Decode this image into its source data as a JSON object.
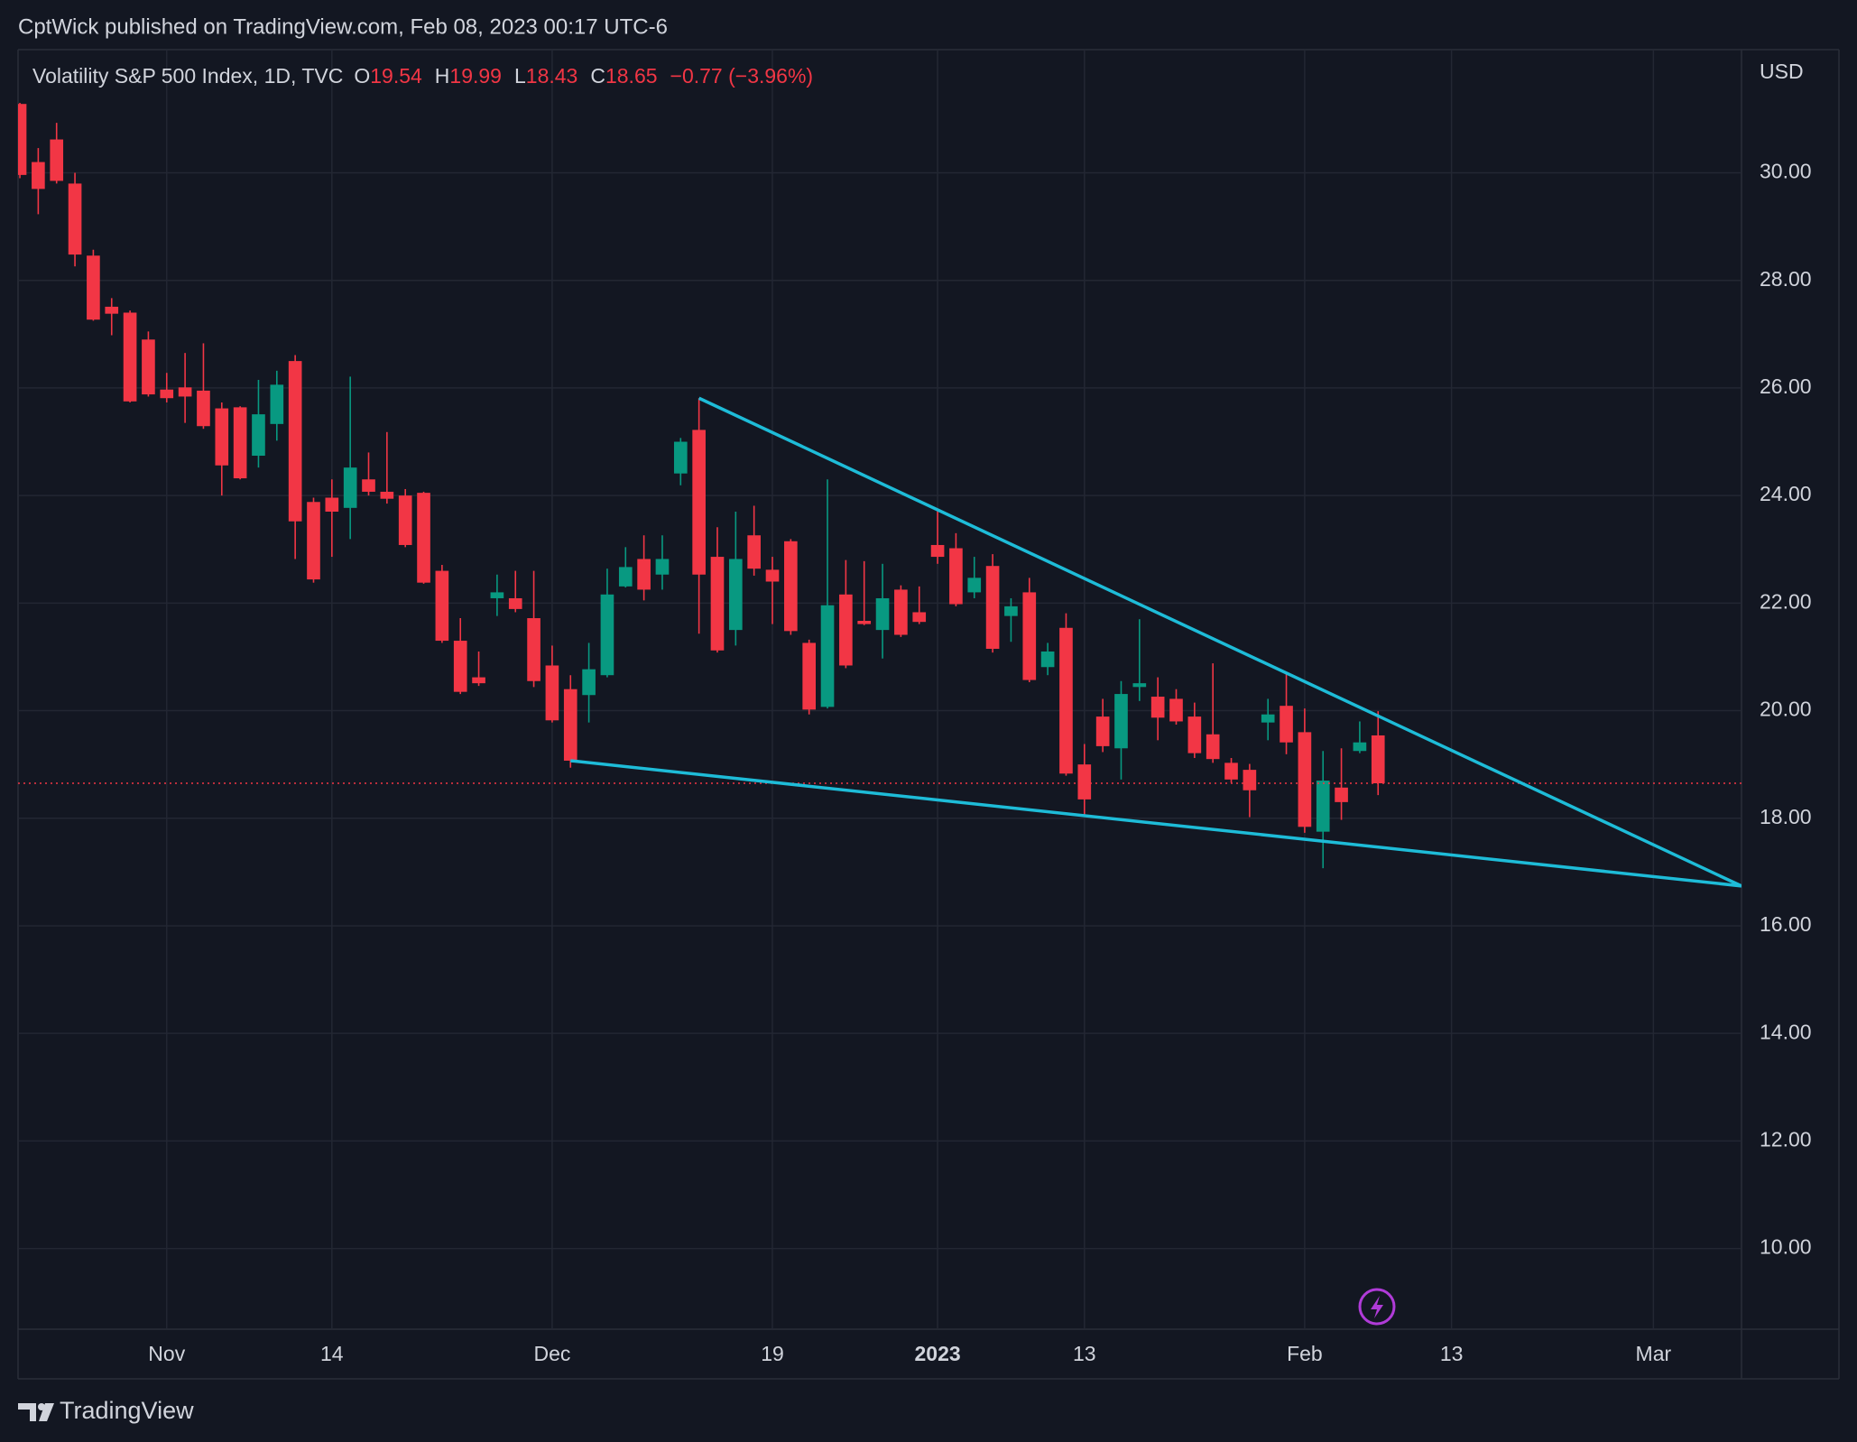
{
  "header": {
    "publisher": "CptWick published on TradingView.com, Feb 08, 2023 00:17 UTC-6"
  },
  "footer": {
    "brand": "TradingView"
  },
  "chart_data": {
    "type": "candlestick",
    "legend": {
      "name": "Volatility S&P 500 Index, 1D, TVC",
      "ohlc_labels": [
        "O",
        "H",
        "L",
        "C"
      ],
      "open": 19.54,
      "high": 19.99,
      "low": 18.43,
      "close": 18.65,
      "change": "−0.77 (−3.96%)"
    },
    "currency": "USD",
    "up_color": "#089981",
    "down_color": "#f23645",
    "trendline_color": "#1ebcd8",
    "grid": true,
    "xlim": [
      -0.1,
      93.8
    ],
    "xticks": [
      {
        "value": 8,
        "label": "Nov"
      },
      {
        "value": 17,
        "label": "14"
      },
      {
        "value": 29,
        "label": "Dec"
      },
      {
        "value": 41,
        "label": "19"
      },
      {
        "value": 50,
        "label": "2023"
      },
      {
        "value": 58,
        "label": "13"
      },
      {
        "value": 70,
        "label": "Feb"
      },
      {
        "value": 78,
        "label": "13"
      },
      {
        "value": 89,
        "label": "Mar"
      }
    ],
    "ylim": [
      8.5,
      32.29
    ],
    "yticks": [
      {
        "value": 10,
        "label": "10.00"
      },
      {
        "value": 12,
        "label": "12.00"
      },
      {
        "value": 14,
        "label": "14.00"
      },
      {
        "value": 16,
        "label": "16.00"
      },
      {
        "value": 18,
        "label": "18.00"
      },
      {
        "value": 20,
        "label": "20.00"
      },
      {
        "value": 22,
        "label": "22.00"
      },
      {
        "value": 24,
        "label": "24.00"
      },
      {
        "value": 26,
        "label": "26.00"
      },
      {
        "value": 28,
        "label": "28.00"
      },
      {
        "value": 30,
        "label": "30.00"
      }
    ],
    "open": [
      31.28,
      30.2,
      30.62,
      29.8,
      28.46,
      27.51,
      27.4,
      26.9,
      25.97,
      26.01,
      25.95,
      25.62,
      25.64,
      24.74,
      25.33,
      26.5,
      23.88,
      23.96,
      23.77,
      24.3,
      24.07,
      24.0,
      24.05,
      22.6,
      21.3,
      20.62,
      22.09,
      22.09,
      21.72,
      20.84,
      20.4,
      20.29,
      20.66,
      22.31,
      22.82,
      22.53,
      24.41,
      25.22,
      22.86,
      21.5,
      23.26,
      22.62,
      23.15,
      21.26,
      20.07,
      22.16,
      21.67,
      21.5,
      22.25,
      21.83,
      23.08,
      23.02,
      22.2,
      22.69,
      21.76,
      22.2,
      20.81,
      21.54,
      19.0,
      19.89,
      19.3,
      20.44,
      20.26,
      20.22,
      19.89,
      19.56,
      19.03,
      18.9,
      19.78,
      20.09,
      19.6,
      17.75,
      18.57,
      19.25,
      19.54
    ],
    "high": [
      31.3,
      30.46,
      30.93,
      30.0,
      28.57,
      27.67,
      27.44,
      27.05,
      26.28,
      26.65,
      26.83,
      25.73,
      25.66,
      26.15,
      26.32,
      26.61,
      23.96,
      24.3,
      26.21,
      24.8,
      25.18,
      24.12,
      24.07,
      22.71,
      21.72,
      21.1,
      22.53,
      22.6,
      22.6,
      21.21,
      20.66,
      21.26,
      22.64,
      23.04,
      23.26,
      23.26,
      25.07,
      25.81,
      23.41,
      23.7,
      23.81,
      22.86,
      23.19,
      21.32,
      24.3,
      22.8,
      22.78,
      22.73,
      22.33,
      22.31,
      23.74,
      23.3,
      22.86,
      22.91,
      22.09,
      22.47,
      21.26,
      21.81,
      19.38,
      20.22,
      20.55,
      21.7,
      20.62,
      20.4,
      20.15,
      20.88,
      19.12,
      19.01,
      20.22,
      20.7,
      20.04,
      19.25,
      19.3,
      19.8,
      19.99
    ],
    "low": [
      29.9,
      29.23,
      29.8,
      28.26,
      27.25,
      26.98,
      25.73,
      25.84,
      25.73,
      25.35,
      25.24,
      24.0,
      24.3,
      24.52,
      25.02,
      22.82,
      22.38,
      22.86,
      23.19,
      24.0,
      23.85,
      23.04,
      22.36,
      21.26,
      20.31,
      20.46,
      21.76,
      21.83,
      20.44,
      19.78,
      18.94,
      19.78,
      20.62,
      22.29,
      22.05,
      22.25,
      24.19,
      21.43,
      21.08,
      21.21,
      22.51,
      21.61,
      21.41,
      19.93,
      20.04,
      20.79,
      21.59,
      20.97,
      21.37,
      21.61,
      22.73,
      21.94,
      22.09,
      21.08,
      21.28,
      20.53,
      20.66,
      18.79,
      18.06,
      19.23,
      18.72,
      20.18,
      19.45,
      19.74,
      19.12,
      19.03,
      18.66,
      18.02,
      19.45,
      19.19,
      17.73,
      17.07,
      17.97,
      19.21,
      18.43
    ],
    "close": [
      29.96,
      29.7,
      29.85,
      28.48,
      27.27,
      27.38,
      25.75,
      25.88,
      25.81,
      25.84,
      25.29,
      24.56,
      24.32,
      25.51,
      26.06,
      23.52,
      22.44,
      23.7,
      24.52,
      24.07,
      23.94,
      23.08,
      22.38,
      21.3,
      20.35,
      20.51,
      22.2,
      21.89,
      20.55,
      19.82,
      19.07,
      20.77,
      22.16,
      22.67,
      22.25,
      22.82,
      25.0,
      22.53,
      21.12,
      22.82,
      22.64,
      22.4,
      21.48,
      20.02,
      21.96,
      20.84,
      21.61,
      22.09,
      21.41,
      21.65,
      22.86,
      21.98,
      22.47,
      21.15,
      21.94,
      20.57,
      21.1,
      18.83,
      18.35,
      19.34,
      20.31,
      20.51,
      19.87,
      19.8,
      19.21,
      19.1,
      18.72,
      18.52,
      19.93,
      19.41,
      17.84,
      18.7,
      18.3,
      19.41,
      18.65
    ],
    "trendlines": [
      {
        "x": [
          37,
          93.8
        ],
        "y": [
          25.81,
          16.74
        ]
      },
      {
        "x": [
          30,
          93.8
        ],
        "y": [
          19.07,
          16.74
        ]
      }
    ]
  }
}
